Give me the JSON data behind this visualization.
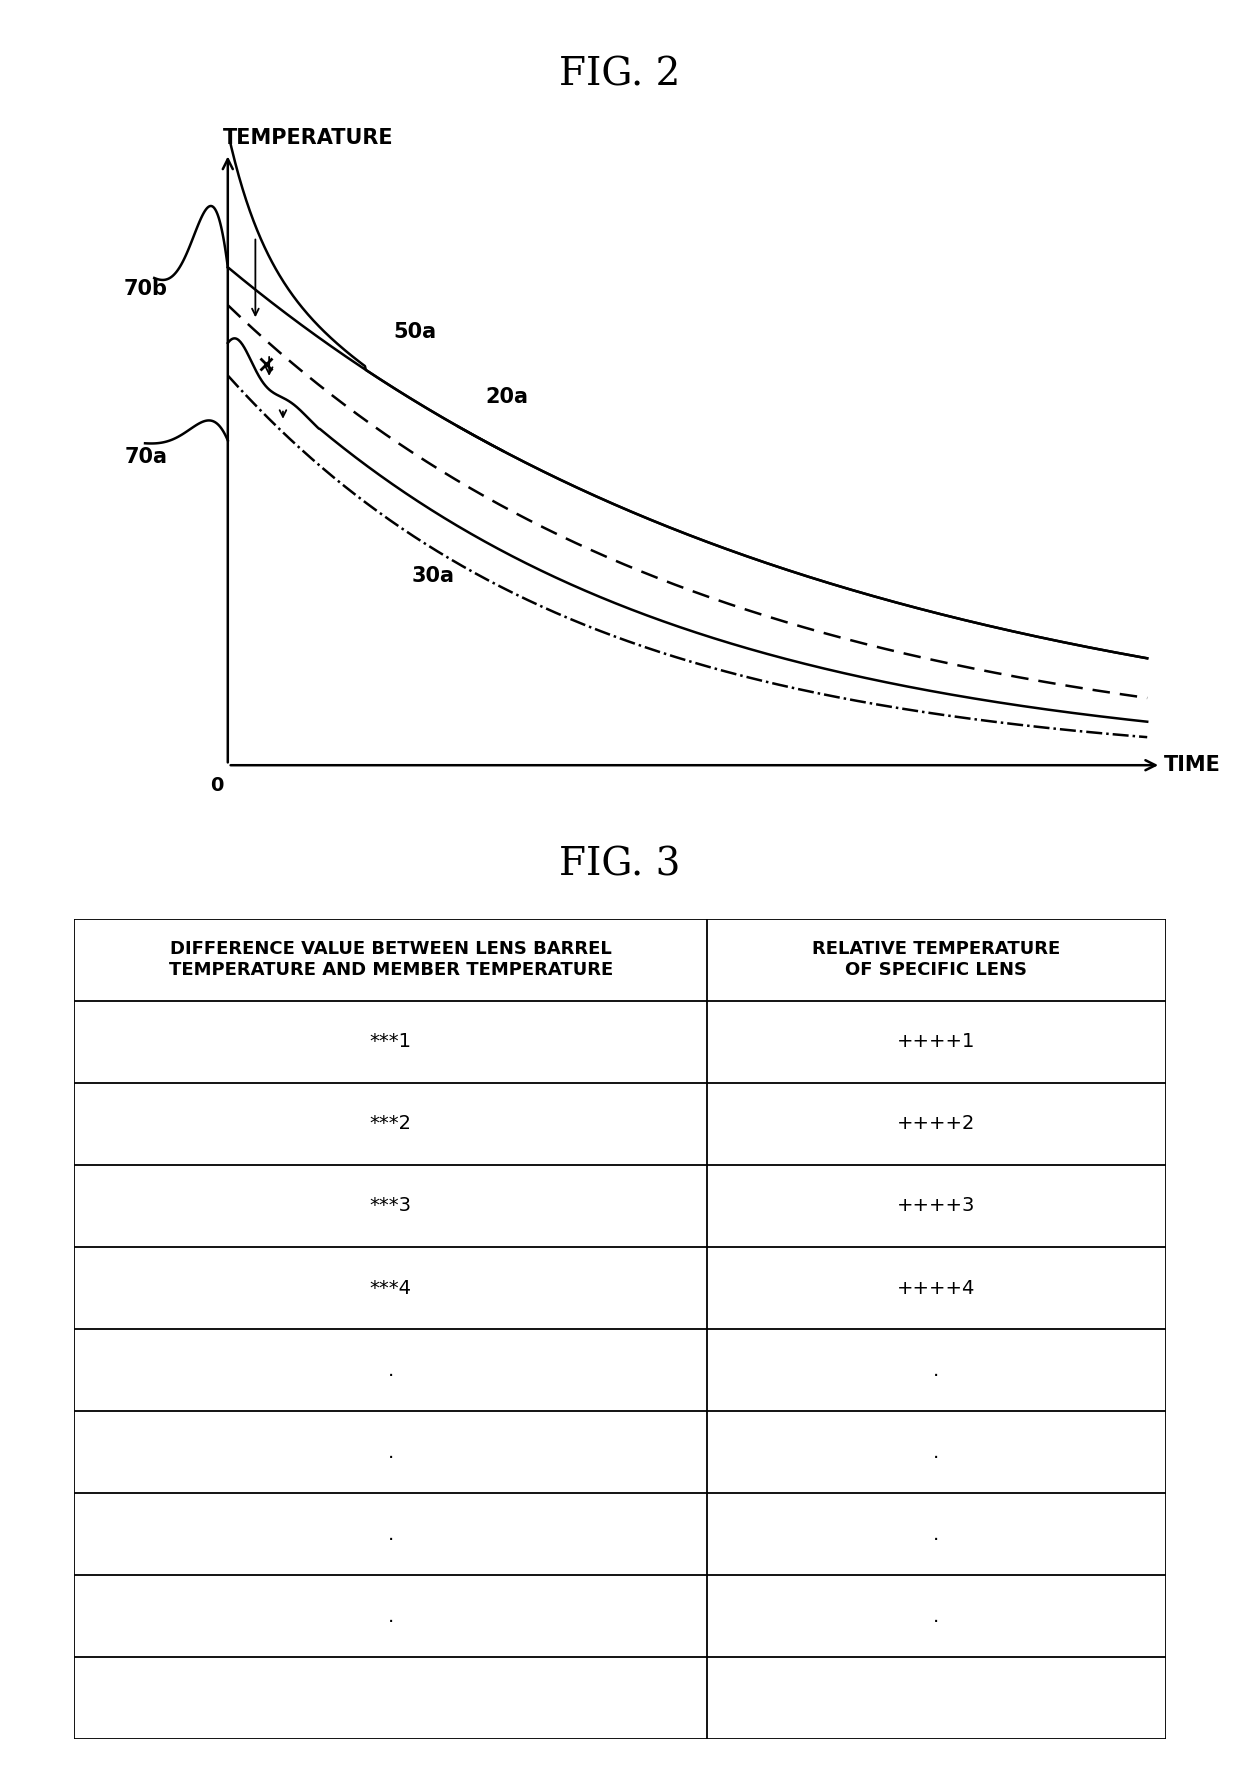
{
  "fig2_title": "FIG. 2",
  "fig3_title": "FIG. 3",
  "xlabel": "TIME",
  "ylabel": "TEMPERATURE",
  "origin_label": "0",
  "table_col1_header": "DIFFERENCE VALUE BETWEEN LENS BARREL\nTEMPERATURE AND MEMBER TEMPERATURE",
  "table_col2_header": "RELATIVE TEMPERATURE\nOF SPECIFIC LENS",
  "table_data_col1": [
    "***1",
    "***2",
    "***3",
    "***4",
    ".",
    ".",
    ".",
    ".",
    ""
  ],
  "table_data_col2": [
    "++++1",
    "++++2",
    "++++3",
    "++++4",
    ".",
    ".",
    ".",
    ".",
    ""
  ],
  "background_color": "#ffffff",
  "line_color": "#000000",
  "n_table_rows": 10
}
